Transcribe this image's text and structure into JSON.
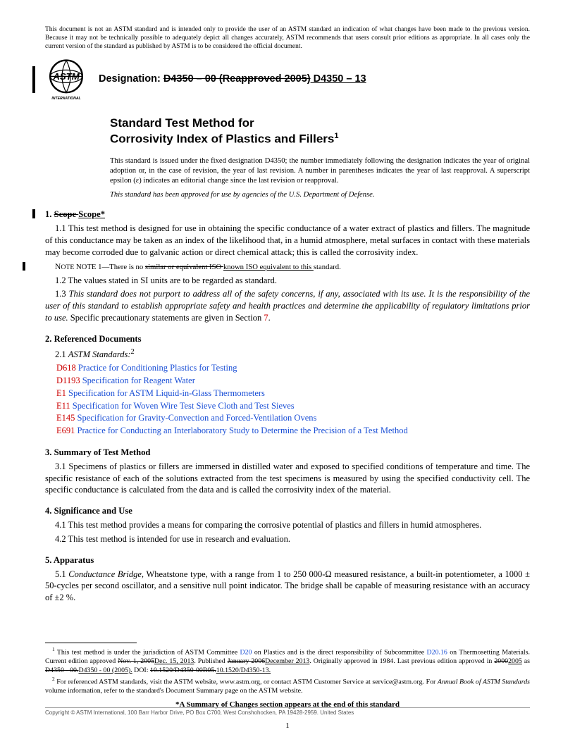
{
  "disclaimer": "This document is not an ASTM standard and is intended only to provide the user of an ASTM standard an indication of what changes have been made to the previous version. Because it may not be technically possible to adequately depict all changes accurately, ASTM recommends that users consult prior editions as appropriate. In all cases only the current version of the standard as published by ASTM is to be considered the official document.",
  "logo_text_intl": "INTERNATIONAL",
  "designation_label": "Designation: ",
  "designation_old": "D4350 – 00 (Reapproved 2005)",
  "designation_new": " D4350 – 13",
  "title_line1": "Standard Test Method for",
  "title_line2_a": "Corrosivity Index of Plastics and Fillers",
  "title_sup": "1",
  "issue_note": "This standard is issued under the fixed designation D4350; the number immediately following the designation indicates the year of original adoption or, in the case of revision, the year of last revision. A number in parentheses indicates the year of last reapproval. A superscript epsilon (ε) indicates an editorial change since the last revision or reapproval.",
  "dod_note": "This standard has been approved for use by agencies of the U.S. Department of Defense.",
  "s1": {
    "head_num": "1.  ",
    "head_old": "Scope ",
    "head_new": "Scope*",
    "p1": "1.1  This test method is designed for use in obtaining the specific conductance of a water extract of plastics and fillers. The magnitude of this conductance may be taken as an index of the likelihood that, in a humid atmosphere, metal surfaces in contact with these materials may become corroded due to galvanic action or direct chemical attack; this is called the corrosivity index.",
    "note_pre": "NOTE 1—There is no ",
    "note_old": "similar or equivalent ISO ",
    "note_new": "known ISO equivalent to this ",
    "note_post": "standard.",
    "p2": "1.2  The values stated in SI units are to be regarded as standard.",
    "p3_a": "1.3  ",
    "p3_b": "This standard does not purport to address all of the safety concerns, if any, associated with its use. It is the responsibility of the user of this standard to establish appropriate safety and health practices and determine the applicability of regulatory limitations prior to use.",
    "p3_c": " Specific precautionary statements are given in Section ",
    "p3_sec": "7",
    "p3_d": "."
  },
  "s2": {
    "head": "2.  Referenced Documents",
    "sub": "2.1  ",
    "sub_a": "ASTM Standards:",
    "sub_sup": "2",
    "refs": [
      {
        "code": "D618",
        "title": " Practice for Conditioning Plastics for Testing"
      },
      {
        "code": "D1193",
        "title": " Specification for Reagent Water"
      },
      {
        "code": "E1",
        "title": " Specification for ASTM Liquid-in-Glass Thermometers"
      },
      {
        "code": "E11",
        "title": " Specification for Woven Wire Test Sieve Cloth and Test Sieves"
      },
      {
        "code": "E145",
        "title": " Specification for Gravity-Convection and Forced-Ventilation Ovens"
      },
      {
        "code": "E691",
        "title": " Practice for Conducting an Interlaboratory Study to Determine the Precision of a Test Method"
      }
    ]
  },
  "s3": {
    "head": "3.  Summary of Test Method",
    "p1": "3.1  Specimens of plastics or fillers are immersed in distilled water and exposed to specified conditions of temperature and time. The specific resistance of each of the solutions extracted from the test specimens is measured by using the specified conductivity cell. The specific conductance is calculated from the data and is called the corrosivity index of the material."
  },
  "s4": {
    "head": "4.  Significance and Use",
    "p1": "4.1  This test method provides a means for comparing the corrosive potential of plastics and fillers in humid atmospheres.",
    "p2": "4.2  This test method is intended for use in research and evaluation."
  },
  "s5": {
    "head": "5.  Apparatus",
    "p1_a": "5.1  ",
    "p1_b": "Conductance Bridge,",
    "p1_c": " Wheatstone type, with a range from 1 to 250 000-Ω measured resistance, a built-in potentiometer, a 1000 ± 50-cycles per second oscillator, and a sensitive null point indicator. The bridge shall be capable of measuring resistance with an accuracy of ±2 %."
  },
  "footnotes": {
    "f1_a": " This test method is under the jurisdiction of ASTM Committee ",
    "f1_d20": "D20",
    "f1_b": " on Plastics and is the direct responsibility of Subcommittee ",
    "f1_d2016": "D20.16",
    "f1_c": " on Thermosetting Materials. Current edition approved ",
    "f1_old1": "Nov. 1, 2005",
    "f1_new1": "Dec. 15, 2013",
    "f1_d": ". Published ",
    "f1_old2": "January 2006",
    "f1_new2": "December 2013",
    "f1_e": ". Originally approved in 1984. Last previous edition approved in ",
    "f1_old3": "2000",
    "f1_new3": "2005",
    "f1_f": " as ",
    "f1_old4": "D4350 - 00.",
    "f1_new4": "D4350 - 00 (2005).",
    "f1_g": " DOI: ",
    "f1_old5": "10.1520/D4350-00R05.",
    "f1_new5": "10.1520/D4350-13.",
    "f2_a": " For referenced ASTM standards, visit the ASTM website, www.astm.org, or contact ASTM Customer Service at service@astm.org. For ",
    "f2_b": "Annual Book of ASTM Standards",
    "f2_c": " volume information, refer to the standard's Document Summary page on the ASTM website."
  },
  "summary_line": "*A Summary of Changes section appears at the end of this standard",
  "copyright": "Copyright © ASTM International, 100 Barr Harbor Drive, PO Box C700, West Conshohocken, PA 19428-2959. United States",
  "pagenum": "1"
}
